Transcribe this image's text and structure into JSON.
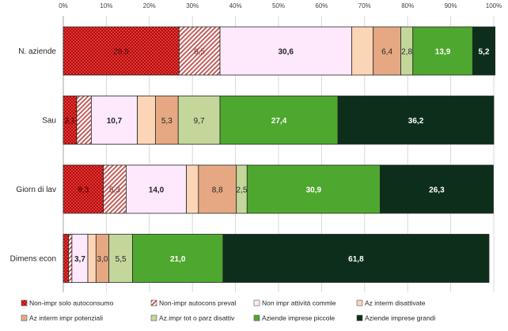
{
  "chart_data": {
    "type": "bar",
    "orientation": "horizontal",
    "stacked": "percent",
    "xlim": [
      0,
      100
    ],
    "x_ticks": [
      "0%",
      "10%",
      "20%",
      "30%",
      "40%",
      "50%",
      "60%",
      "70%",
      "80%",
      "90%",
      "100%"
    ],
    "x_axis_position": "top",
    "grid": true,
    "legend_position": "bottom",
    "categories": [
      "N. aziende",
      "Sau",
      "Giorn di lav",
      "Dimens econ"
    ],
    "series": [
      {
        "name": "Non-impr solo autoconsumo",
        "color": "#c00000",
        "pattern": "dots",
        "values": [
          26.9,
          3.1,
          9.3,
          1.2
        ],
        "labels": [
          "26,9",
          "3,1",
          "9,3",
          ""
        ]
      },
      {
        "name": "Non-impr autocons preval",
        "color": "#c0504d",
        "pattern": "diagonal",
        "values": [
          9.5,
          3.4,
          5.3,
          0.8
        ],
        "labels": [
          "9,5",
          "",
          "5,3",
          ""
        ]
      },
      {
        "name": "Non impr attività commle",
        "color": "#fde9fb",
        "pattern": "solid",
        "values": [
          30.6,
          10.7,
          14.0,
          3.7
        ],
        "labels": [
          "30,6",
          "10,7",
          "14,0",
          "3,7"
        ]
      },
      {
        "name": "Az interm disattivate",
        "color": "#fbd5b5",
        "pattern": "solid",
        "values": [
          5.0,
          4.2,
          2.8,
          1.9
        ],
        "labels": [
          "",
          "",
          "",
          ""
        ]
      },
      {
        "name": "Az interm impr potenziali",
        "color": "#e6a882",
        "pattern": "solid",
        "values": [
          6.4,
          5.3,
          8.8,
          3.0
        ],
        "labels": [
          "6,4",
          "5,3",
          "8,8",
          "3,0"
        ]
      },
      {
        "name": "Az.impr tot o parz disattiv",
        "color": "#c4d79b",
        "pattern": "solid",
        "values": [
          2.8,
          9.7,
          2.5,
          5.5
        ],
        "labels": [
          "2,8",
          "9,7",
          "2,5",
          "5,5"
        ]
      },
      {
        "name": "Aziende imprese piccole",
        "color": "#4ea72e",
        "pattern": "solid",
        "values": [
          13.9,
          27.4,
          30.9,
          21.0
        ],
        "labels": [
          "13,9",
          "27,4",
          "30,9",
          "21,0"
        ]
      },
      {
        "name": "Aziende imprese grandi",
        "color": "#0d2e1a",
        "pattern": "solid",
        "values": [
          5.2,
          36.2,
          26.3,
          61.8
        ],
        "labels": [
          "5,2",
          "36,2",
          "26,3",
          "61,8"
        ]
      }
    ]
  }
}
